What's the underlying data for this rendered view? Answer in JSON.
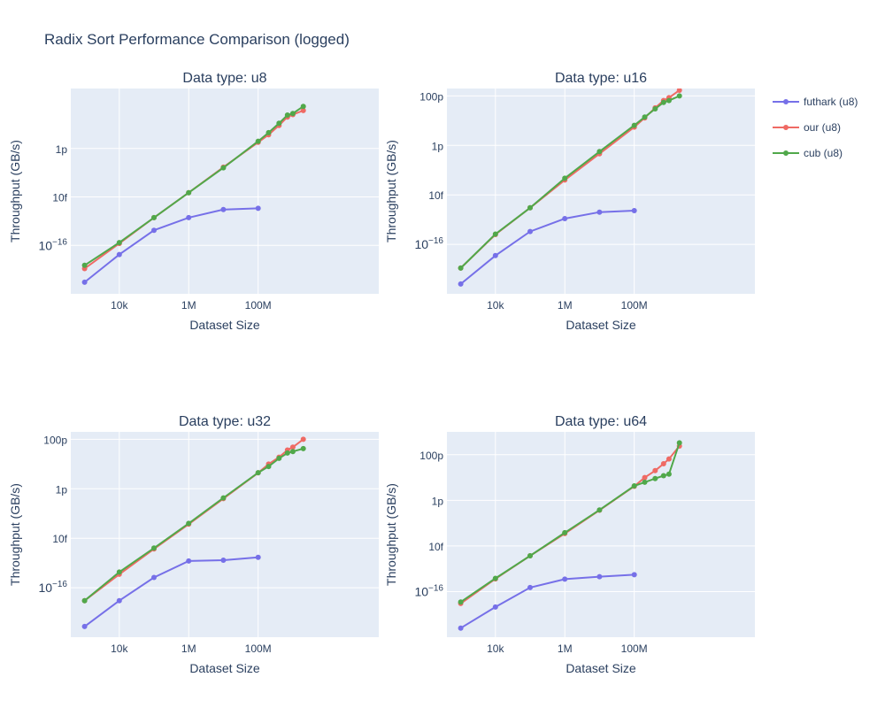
{
  "figure": {
    "title": "Radix Sort Performance Comparison (logged)"
  },
  "legend": [
    {
      "name": "futhark (u8)",
      "color": "#636efa"
    },
    {
      "name": "our (u8)",
      "color": "#ef553b"
    },
    {
      "name": "cub (u8)",
      "color": "#00cc96"
    }
  ],
  "chart_data": [
    {
      "type": "line",
      "title": "Data type: u8",
      "xlabel": "Dataset Size",
      "ylabel": "Throughput (GB/s)",
      "x_scale": "log",
      "y_scale": "log",
      "xlim": [
        400,
        300000000000
      ],
      "ylim": [
        1e-18,
        3e-10
      ],
      "x_ticks": [
        {
          "v": 10000,
          "label": "10k"
        },
        {
          "v": 1000000,
          "label": "1M"
        },
        {
          "v": 100000000,
          "label": "100M"
        }
      ],
      "y_ticks": [
        {
          "v": 1e-16,
          "label": "10−16"
        },
        {
          "v": 1e-14,
          "label": "10f"
        },
        {
          "v": 1e-12,
          "label": "1p"
        }
      ],
      "series": [
        {
          "name": "futhark (u8)",
          "color": "#7670e8",
          "x": [
            1000,
            10000,
            100000,
            1000000,
            10000000,
            100000000
          ],
          "y": [
            3e-18,
            4.2e-17,
            4.2e-16,
            1.4e-15,
            3e-15,
            3.4e-15
          ]
        },
        {
          "name": "our (u8)",
          "color": "#ef6a64",
          "x": [
            1000,
            10000,
            100000,
            1000000,
            10000000,
            100000000,
            200000000,
            400000000,
            700000000,
            1000000000,
            2000000000
          ],
          "y": [
            1.1e-17,
            1.2e-16,
            1.4e-15,
            1.5e-14,
            1.7e-13,
            1.8e-12,
            3.7e-12,
            9e-12,
            2e-11,
            2.5e-11,
            3.7e-11
          ]
        },
        {
          "name": "cub (u8)",
          "color": "#50a84a",
          "x": [
            1000,
            10000,
            100000,
            1000000,
            10000000,
            100000000,
            200000000,
            400000000,
            700000000,
            1000000000,
            2000000000
          ],
          "y": [
            1.5e-17,
            1.3e-16,
            1.4e-15,
            1.5e-14,
            1.6e-13,
            2e-12,
            4.5e-12,
            1.1e-11,
            2.4e-11,
            2.8e-11,
            5.5e-11
          ]
        }
      ]
    },
    {
      "type": "line",
      "title": "Data type: u16",
      "xlabel": "Dataset Size",
      "ylabel": "Throughput (GB/s)",
      "x_scale": "log",
      "y_scale": "log",
      "xlim": [
        400,
        300000000000
      ],
      "ylim": [
        1e-18,
        2e-10
      ],
      "x_ticks": [
        {
          "v": 10000,
          "label": "10k"
        },
        {
          "v": 1000000,
          "label": "1M"
        },
        {
          "v": 100000000,
          "label": "100M"
        }
      ],
      "y_ticks": [
        {
          "v": 1e-16,
          "label": "10−16"
        },
        {
          "v": 1e-14,
          "label": "10f"
        },
        {
          "v": 1e-12,
          "label": "1p"
        },
        {
          "v": 1e-10,
          "label": "100p"
        }
      ],
      "series": [
        {
          "name": "futhark (u16)",
          "color": "#7670e8",
          "x": [
            1000,
            10000,
            100000,
            1000000,
            10000000,
            100000000
          ],
          "y": [
            2.5e-18,
            3.5e-17,
            3.3e-16,
            1.1e-15,
            2e-15,
            2.3e-15
          ]
        },
        {
          "name": "our (u16)",
          "color": "#ef6a64",
          "x": [
            1000,
            10000,
            100000,
            1000000,
            10000000,
            100000000,
            200000000,
            400000000,
            700000000,
            1000000000,
            2000000000
          ],
          "y": [
            1.1e-17,
            2.5e-16,
            3e-15,
            4e-14,
            4.6e-13,
            5.5e-12,
            1.3e-11,
            3.3e-11,
            6.5e-11,
            8.5e-11,
            1.7e-10
          ]
        },
        {
          "name": "cub (u16)",
          "color": "#50a84a",
          "x": [
            1000,
            10000,
            100000,
            1000000,
            10000000,
            100000000,
            200000000,
            400000000,
            700000000,
            1000000000,
            2000000000
          ],
          "y": [
            1.1e-17,
            2.6e-16,
            3e-15,
            4.7e-14,
            5.6e-13,
            6.5e-12,
            1.4e-11,
            3e-11,
            5.5e-11,
            6.5e-11,
            1e-10
          ]
        }
      ]
    },
    {
      "type": "line",
      "title": "Data type: u32",
      "xlabel": "Dataset Size",
      "ylabel": "Throughput (GB/s)",
      "x_scale": "log",
      "y_scale": "log",
      "xlim": [
        400,
        300000000000
      ],
      "ylim": [
        1e-18,
        2e-10
      ],
      "x_ticks": [
        {
          "v": 10000,
          "label": "10k"
        },
        {
          "v": 1000000,
          "label": "1M"
        },
        {
          "v": 100000000,
          "label": "100M"
        }
      ],
      "y_ticks": [
        {
          "v": 1e-16,
          "label": "10−16"
        },
        {
          "v": 1e-14,
          "label": "10f"
        },
        {
          "v": 1e-12,
          "label": "1p"
        },
        {
          "v": 1e-10,
          "label": "100p"
        }
      ],
      "series": [
        {
          "name": "futhark (u32)",
          "color": "#7670e8",
          "x": [
            1000,
            10000,
            100000,
            1000000,
            10000000,
            100000000
          ],
          "y": [
            2.7e-18,
            3e-17,
            2.6e-16,
            1.2e-15,
            1.3e-15,
            1.7e-15
          ]
        },
        {
          "name": "our (u32)",
          "color": "#ef6a64",
          "x": [
            1000,
            10000,
            100000,
            1000000,
            10000000,
            100000000,
            200000000,
            400000000,
            700000000,
            1000000000,
            2000000000
          ],
          "y": [
            3e-17,
            3.5e-16,
            3.7e-15,
            3.7e-14,
            4e-13,
            4.4e-12,
            1e-11,
            1.9e-11,
            3.7e-11,
            4.8e-11,
            1e-10
          ]
        },
        {
          "name": "cub (u32)",
          "color": "#50a84a",
          "x": [
            1000,
            10000,
            100000,
            1000000,
            10000000,
            100000000,
            200000000,
            400000000,
            700000000,
            1000000000,
            2000000000
          ],
          "y": [
            3e-17,
            4.3e-16,
            4e-15,
            4e-14,
            4.3e-13,
            4.5e-12,
            8e-12,
            1.7e-11,
            2.8e-11,
            3.2e-11,
            4.2e-11
          ]
        }
      ]
    },
    {
      "type": "line",
      "title": "Data type: u64",
      "xlabel": "Dataset Size",
      "ylabel": "Throughput (GB/s)",
      "x_scale": "log",
      "y_scale": "log",
      "xlim": [
        400,
        300000000000
      ],
      "ylim": [
        1e-18,
        1e-09
      ],
      "x_ticks": [
        {
          "v": 10000,
          "label": "10k"
        },
        {
          "v": 1000000,
          "label": "1M"
        },
        {
          "v": 100000000,
          "label": "100M"
        }
      ],
      "y_ticks": [
        {
          "v": 1e-16,
          "label": "10−16"
        },
        {
          "v": 1e-14,
          "label": "10f"
        },
        {
          "v": 1e-12,
          "label": "1p"
        },
        {
          "v": 1e-10,
          "label": "100p"
        }
      ],
      "series": [
        {
          "name": "futhark (u64)",
          "color": "#7670e8",
          "x": [
            1000,
            10000,
            100000,
            1000000,
            10000000,
            100000000
          ],
          "y": [
            2.5e-18,
            2.1e-17,
            1.5e-16,
            3.5e-16,
            4.5e-16,
            5.5e-16
          ]
        },
        {
          "name": "our (u64)",
          "color": "#ef6a64",
          "x": [
            1000,
            10000,
            100000,
            1000000,
            10000000,
            100000000,
            200000000,
            400000000,
            700000000,
            1000000000,
            2000000000
          ],
          "y": [
            3e-17,
            3.6e-16,
            3.7e-15,
            3.5e-14,
            3.7e-13,
            4.1e-12,
            1e-11,
            2e-11,
            4e-11,
            6.5e-11,
            2.4e-10
          ]
        },
        {
          "name": "cub (u64)",
          "color": "#50a84a",
          "x": [
            1000,
            10000,
            100000,
            1000000,
            10000000,
            100000000,
            200000000,
            400000000,
            700000000,
            1000000000,
            2000000000
          ],
          "y": [
            3.5e-17,
            3.8e-16,
            3.7e-15,
            3.8e-14,
            3.8e-13,
            4.3e-12,
            6.2e-12,
            9e-12,
            1.2e-11,
            1.4e-11,
            3.3e-10
          ]
        }
      ]
    }
  ]
}
